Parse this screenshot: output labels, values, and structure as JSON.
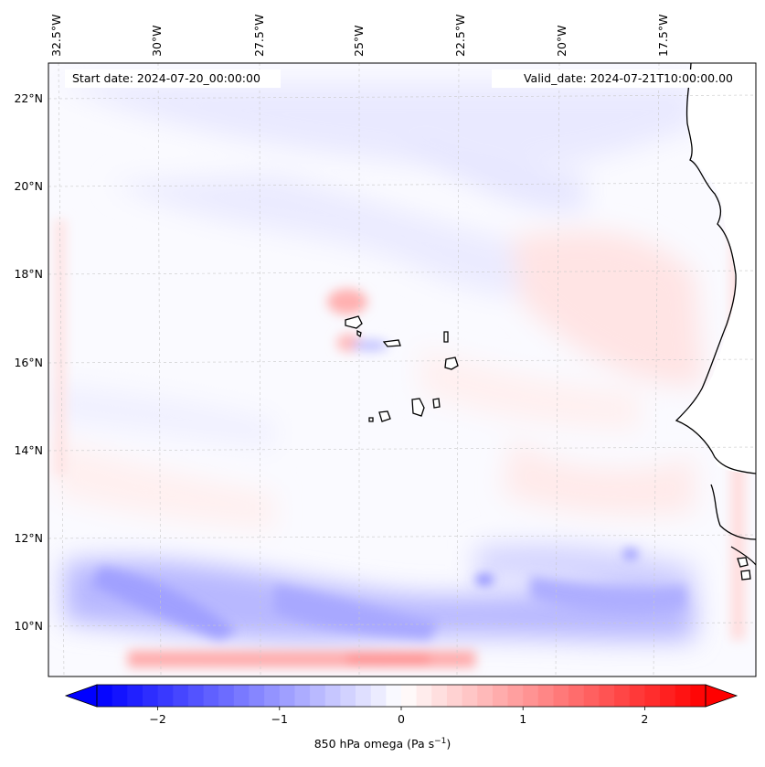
{
  "map": {
    "start_label": "Start date: 2024-07-20_00:00:00",
    "valid_label": "Valid_date: 2024-07-21T10:00:00.00",
    "lon_ticks": [
      "32.5°W",
      "30°W",
      "27.5°W",
      "25°W",
      "22.5°W",
      "20°W",
      "17.5°W"
    ],
    "lat_ticks": [
      "22°N",
      "20°N",
      "18°N",
      "16°N",
      "14°N",
      "12°N",
      "10°N"
    ],
    "field": "850 hPa omega",
    "extent": {
      "lon": [
        -33,
        -15.5
      ],
      "lat": [
        9,
        22.8
      ]
    },
    "gridlines": true,
    "colormap": "bwr"
  },
  "colorbar": {
    "label_main": "850 hPa omega (Pa s",
    "label_exp": "−1",
    "label_close": ")",
    "ticks": [
      "−2",
      "−1",
      "0",
      "1",
      "2"
    ],
    "tick_values": [
      -2,
      -1,
      0,
      1,
      2
    ],
    "range": [
      -2.5,
      2.5
    ],
    "extend": "both",
    "low_color": "#0000ff",
    "mid_color": "#ffffff",
    "high_color": "#ff0000"
  }
}
